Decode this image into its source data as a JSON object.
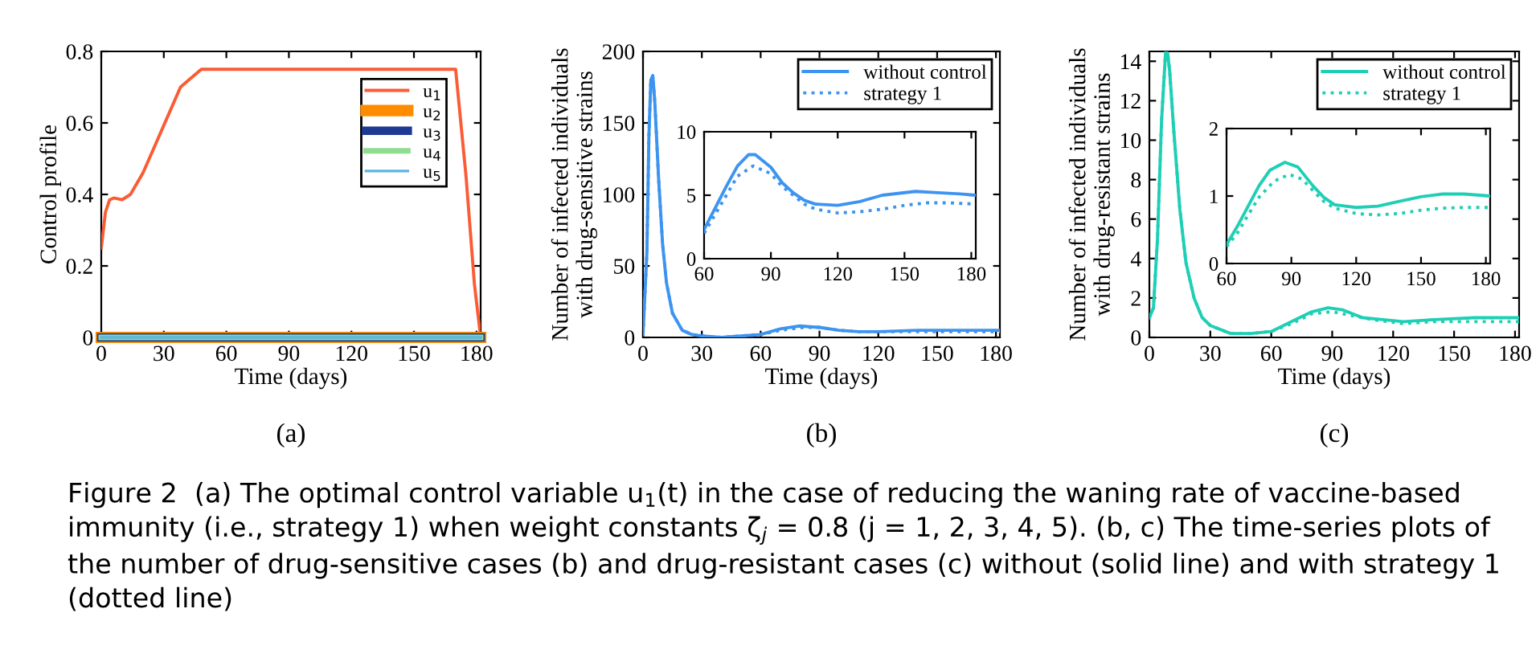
{
  "chart_data": [
    {
      "type": "line",
      "ylabel": "Control profile",
      "xlabel": "Time (days)",
      "xlim": [
        0,
        182
      ],
      "xticks": [
        0,
        30,
        60,
        90,
        120,
        150,
        180
      ],
      "ylim": [
        0,
        0.8
      ],
      "yticks": [
        0,
        0.2,
        0.4,
        0.6,
        0.8
      ],
      "legend": "top right",
      "grid": false,
      "line_style": "solid",
      "marker": "none",
      "annotations": [
        "(a)",
        "Figure 2  (a) The optimal control variable u$_{1}$(t) in the case of reducing the waning rate of vaccine-based immunity (i.e., strategy 1) when weight constants ζ$_{j}$ = 0.8 (j = 1, 2, 3, 4, 5). (b, c) The time-series plots of the number of drug-sensitive cases (b) and drug-resistant cases (c) without (solid line) and with strategy 1 (dotted line)"
      ],
      "series": [
        {
          "name": "u$_{1}$",
          "color": "#fb5b35",
          "x": [
            0,
            2,
            4,
            6,
            10,
            14,
            20,
            26,
            32,
            38,
            42,
            48,
            170,
            175,
            179,
            182
          ],
          "values": [
            0.25,
            0.35,
            0.385,
            0.39,
            0.385,
            0.4,
            0.46,
            0.54,
            0.62,
            0.7,
            0.72,
            0.75,
            0.75,
            0.45,
            0.15,
            0.0
          ]
        },
        {
          "name": "u$_{2}$",
          "color": "#ff8c00",
          "x": [
            0,
            182
          ],
          "values": [
            0,
            0
          ]
        },
        {
          "name": "u$_{3}$",
          "color": "#1f3a93",
          "x": [
            0,
            182
          ],
          "values": [
            0,
            0
          ]
        },
        {
          "name": "u$_{4}$",
          "color": "#90dc90",
          "x": [
            0,
            182
          ],
          "values": [
            0,
            0
          ]
        },
        {
          "name": "u$_{5}$",
          "color": "#5ab4e5",
          "x": [
            0,
            182
          ],
          "values": [
            0,
            0
          ]
        }
      ]
    },
    {
      "type": "line",
      "ylabel": "Number of infected individuals\nwith drug-sensitive strains",
      "xlabel": "Time (days)",
      "xlim": [
        0,
        182
      ],
      "xticks": [
        0,
        30,
        60,
        90,
        120,
        150,
        180
      ],
      "ylim": [
        0,
        200
      ],
      "yticks": [
        0,
        50,
        100,
        150,
        200
      ],
      "legend": "top right",
      "grid": false,
      "marker": "none",
      "annotations": [
        "(b)"
      ],
      "series": [
        {
          "name": "without control",
          "color": "#3d94f0",
          "line_style": "solid",
          "x": [
            0,
            2,
            3,
            4,
            5,
            6,
            8,
            10,
            12,
            15,
            20,
            25,
            30,
            40,
            50,
            60,
            70,
            80,
            90,
            100,
            110,
            120,
            140,
            155,
            170,
            182
          ],
          "values": [
            2,
            60,
            140,
            180,
            183,
            165,
            110,
            65,
            38,
            17,
            5,
            2,
            1,
            0,
            1,
            2,
            6,
            8,
            7,
            5,
            4,
            4,
            5,
            5,
            5,
            5
          ]
        },
        {
          "name": "strategy 1",
          "color": "#3d94f0",
          "line_style": "dotted",
          "x": [
            0,
            2,
            3,
            4,
            5,
            6,
            8,
            10,
            12,
            15,
            20,
            25,
            30,
            40,
            50,
            60,
            70,
            82,
            90,
            100,
            110,
            120,
            130,
            150,
            165,
            182
          ],
          "values": [
            2,
            60,
            140,
            180,
            183,
            165,
            110,
            65,
            38,
            17,
            5,
            2,
            1,
            0,
            1,
            2,
            5,
            7,
            7,
            5,
            4,
            4,
            4,
            4,
            4,
            4
          ]
        }
      ]
    },
    {
      "type": "line",
      "xlim": [
        60,
        182
      ],
      "xticks": [
        60,
        90,
        120,
        150,
        180
      ],
      "ylim": [
        0,
        10
      ],
      "yticks": [
        0,
        5,
        10
      ],
      "legend": false,
      "grid": false,
      "marker": "none",
      "series": [
        {
          "color": "#3d94f0",
          "line_style": "solid",
          "x": [
            60,
            65,
            70,
            75,
            80,
            83,
            90,
            95,
            100,
            105,
            110,
            120,
            130,
            140,
            155,
            165,
            175,
            182
          ],
          "values": [
            2.3,
            4,
            5.7,
            7.3,
            8.2,
            8.2,
            7.2,
            6,
            5.2,
            4.6,
            4.3,
            4.2,
            4.5,
            5.0,
            5.3,
            5.2,
            5.1,
            5.0
          ]
        },
        {
          "color": "#3d94f0",
          "line_style": "dotted",
          "x": [
            60,
            65,
            70,
            75,
            82,
            90,
            95,
            100,
            105,
            110,
            120,
            130,
            140,
            150,
            160,
            170,
            182
          ],
          "values": [
            2.0,
            3.5,
            5,
            6.5,
            7.3,
            6.7,
            5.7,
            5.0,
            4.3,
            3.9,
            3.6,
            3.7,
            3.9,
            4.2,
            4.4,
            4.4,
            4.3
          ]
        }
      ]
    },
    {
      "type": "line",
      "ylabel": "Number of infected individuals\nwith drug-resistant strains",
      "xlabel": "Time (days)",
      "xlim": [
        0,
        182
      ],
      "xticks": [
        0,
        30,
        60,
        90,
        120,
        150,
        180
      ],
      "ylim": [
        0,
        14.5
      ],
      "yticks": [
        0,
        2,
        4,
        6,
        8,
        10,
        12,
        14
      ],
      "legend": "top right",
      "grid": false,
      "marker": "none",
      "annotations": [
        "(c)"
      ],
      "series": [
        {
          "name": "without control",
          "color": "#1fcfb5",
          "line_style": "solid",
          "x": [
            0,
            2,
            4,
            6,
            8,
            9,
            10,
            12,
            15,
            18,
            22,
            26,
            30,
            40,
            50,
            60,
            70,
            80,
            88,
            95,
            105,
            115,
            125,
            140,
            160,
            182
          ],
          "values": [
            1,
            1.5,
            5,
            11,
            14.5,
            14.4,
            13.5,
            10.5,
            6.5,
            3.8,
            2,
            1,
            0.6,
            0.2,
            0.2,
            0.3,
            0.8,
            1.3,
            1.5,
            1.4,
            1.0,
            0.9,
            0.8,
            0.9,
            1.0,
            1.0
          ]
        },
        {
          "name": "strategy 1",
          "color": "#1fcfb5",
          "line_style": "dotted",
          "x": [
            0,
            2,
            4,
            6,
            8,
            9,
            10,
            12,
            15,
            18,
            22,
            26,
            30,
            40,
            50,
            60,
            70,
            80,
            90,
            100,
            110,
            125,
            140,
            160,
            182
          ],
          "values": [
            1,
            1.5,
            5,
            11,
            14.5,
            14.4,
            13.5,
            10.5,
            6.5,
            3.8,
            2,
            1,
            0.6,
            0.2,
            0.2,
            0.3,
            0.7,
            1.2,
            1.3,
            1.1,
            0.9,
            0.7,
            0.8,
            0.8,
            0.8
          ]
        }
      ]
    },
    {
      "type": "line",
      "xlim": [
        60,
        182
      ],
      "xticks": [
        60,
        90,
        120,
        150,
        180
      ],
      "ylim": [
        0,
        2
      ],
      "yticks": [
        0,
        1,
        2
      ],
      "legend": false,
      "grid": false,
      "marker": "none",
      "series": [
        {
          "color": "#1fcfb5",
          "line_style": "solid",
          "x": [
            60,
            65,
            70,
            75,
            80,
            87,
            93,
            100,
            105,
            110,
            120,
            130,
            140,
            150,
            160,
            170,
            182
          ],
          "values": [
            0.28,
            0.55,
            0.85,
            1.15,
            1.38,
            1.5,
            1.43,
            1.15,
            0.98,
            0.87,
            0.83,
            0.85,
            0.92,
            0.99,
            1.03,
            1.03,
            1.0
          ]
        },
        {
          "color": "#1fcfb5",
          "line_style": "dotted",
          "x": [
            60,
            65,
            70,
            75,
            82,
            89,
            95,
            100,
            105,
            110,
            120,
            130,
            140,
            150,
            160,
            170,
            182
          ],
          "values": [
            0.25,
            0.45,
            0.72,
            0.98,
            1.22,
            1.32,
            1.25,
            1.08,
            0.92,
            0.82,
            0.74,
            0.72,
            0.74,
            0.79,
            0.82,
            0.83,
            0.83
          ]
        }
      ]
    }
  ]
}
